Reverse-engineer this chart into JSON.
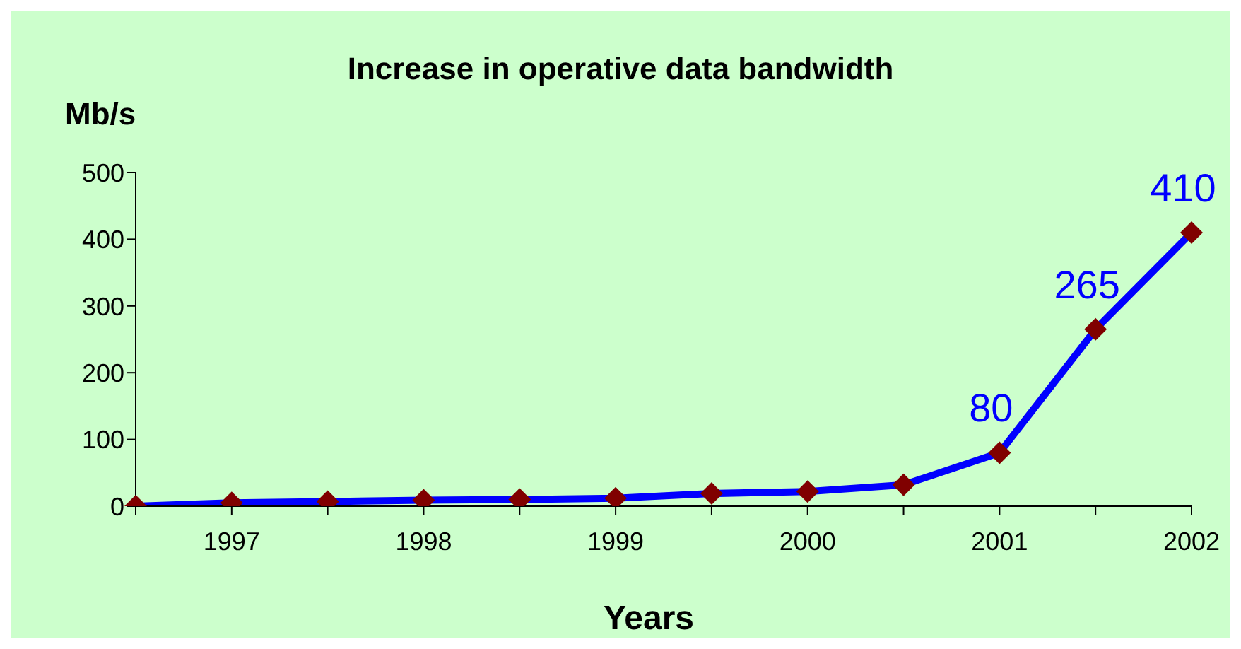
{
  "chart_data": {
    "type": "line",
    "title": "Increase in operative data bandwidth",
    "xlabel": "Years",
    "ylabel": "Mb/s",
    "categories": [
      null,
      "1997",
      null,
      "1998",
      null,
      "1999",
      null,
      "2000",
      null,
      "2001",
      null,
      "2002"
    ],
    "series": [
      {
        "color": "#0000ff",
        "colors": [
          "#800000",
          "#800000",
          "#800000",
          "#800000",
          "#800000",
          "#800000",
          "#800000",
          "#800000",
          "#800000",
          "#800000",
          "#800000",
          "#800000"
        ],
        "values": [
          0,
          5,
          7,
          9,
          10,
          12,
          19,
          22,
          32,
          80,
          265,
          410
        ],
        "value_labels": [
          null,
          null,
          null,
          null,
          null,
          null,
          null,
          null,
          null,
          "80",
          "265",
          "410"
        ]
      }
    ],
    "ylim": [
      0,
      500
    ],
    "yticks": [
      0,
      100,
      200,
      300,
      400,
      500
    ],
    "marker": "diamond",
    "line_style": "solid"
  }
}
